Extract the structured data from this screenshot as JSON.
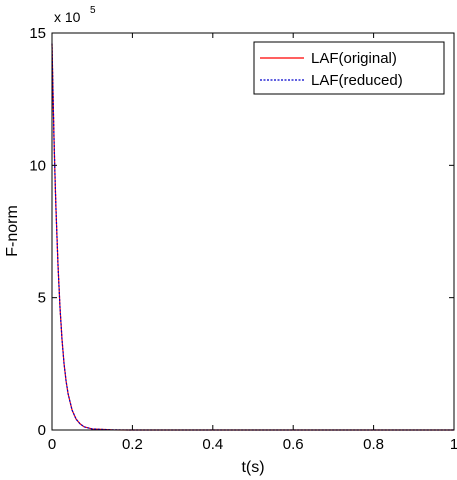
{
  "chart_data": {
    "type": "line",
    "title": "",
    "xlabel": "t(s)",
    "ylabel": "F-norm",
    "xlim": [
      0,
      1
    ],
    "ylim": [
      0,
      15
    ],
    "y_multiplier": {
      "base": "x 10",
      "exponent": "5"
    },
    "xticks": [
      "0",
      "0.2",
      "0.4",
      "0.6",
      "0.8",
      "1"
    ],
    "yticks": [
      "0",
      "5",
      "10",
      "15"
    ],
    "grid": false,
    "legend_position": "top-right",
    "series": [
      {
        "name": "LAF(original)",
        "color": "#ff0000",
        "style": "solid",
        "x": [
          0,
          0.002,
          0.005,
          0.008,
          0.01,
          0.015,
          0.02,
          0.025,
          0.03,
          0.035,
          0.04,
          0.05,
          0.06,
          0.07,
          0.08,
          0.1,
          0.15,
          0.2,
          0.4,
          0.6,
          0.8,
          1.0
        ],
        "y": [
          14.6,
          13.1,
          11.0,
          9.3,
          8.3,
          6.2,
          4.6,
          3.4,
          2.5,
          1.85,
          1.37,
          0.75,
          0.41,
          0.23,
          0.12,
          0.04,
          0.005,
          0.0,
          0.0,
          0.0,
          0.0,
          0.0
        ]
      },
      {
        "name": "LAF(reduced)",
        "color": "#0000cc",
        "style": "dotted",
        "x": [
          0,
          0.002,
          0.005,
          0.008,
          0.01,
          0.015,
          0.02,
          0.025,
          0.03,
          0.035,
          0.04,
          0.05,
          0.06,
          0.07,
          0.08,
          0.1,
          0.15,
          0.2,
          0.4,
          0.6,
          0.8,
          1.0
        ],
        "y": [
          14.6,
          13.1,
          11.0,
          9.3,
          8.3,
          6.2,
          4.6,
          3.4,
          2.5,
          1.85,
          1.37,
          0.75,
          0.41,
          0.23,
          0.12,
          0.04,
          0.005,
          0.0,
          0.0,
          0.0,
          0.0,
          0.0
        ]
      }
    ]
  }
}
